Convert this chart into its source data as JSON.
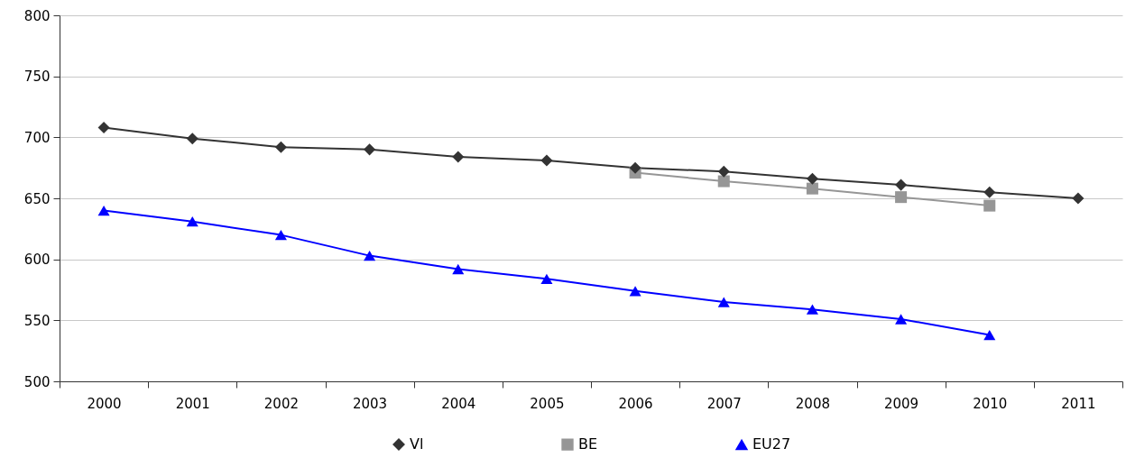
{
  "chart_data": {
    "type": "line",
    "categories": [
      "2000",
      "2001",
      "2002",
      "2003",
      "2004",
      "2005",
      "2006",
      "2007",
      "2008",
      "2009",
      "2010",
      "2011"
    ],
    "series": [
      {
        "name": "Vl",
        "color": "#333333",
        "marker": "diamond",
        "values": [
          708,
          699,
          692,
          690,
          684,
          681,
          675,
          672,
          666,
          661,
          655,
          650
        ]
      },
      {
        "name": "BE",
        "color": "#969696",
        "marker": "square",
        "values": [
          null,
          null,
          null,
          null,
          null,
          null,
          671,
          664,
          658,
          651,
          644,
          null
        ]
      },
      {
        "name": "EU27",
        "color": "#0000ff",
        "marker": "triangle",
        "values": [
          640,
          631,
          620,
          603,
          592,
          584,
          574,
          565,
          559,
          551,
          538,
          null
        ]
      }
    ],
    "ylim": [
      500,
      800
    ],
    "yticks": [
      500,
      550,
      600,
      650,
      700,
      750,
      800
    ],
    "grid": "y",
    "legend": "bottom",
    "line_style": "solid"
  }
}
